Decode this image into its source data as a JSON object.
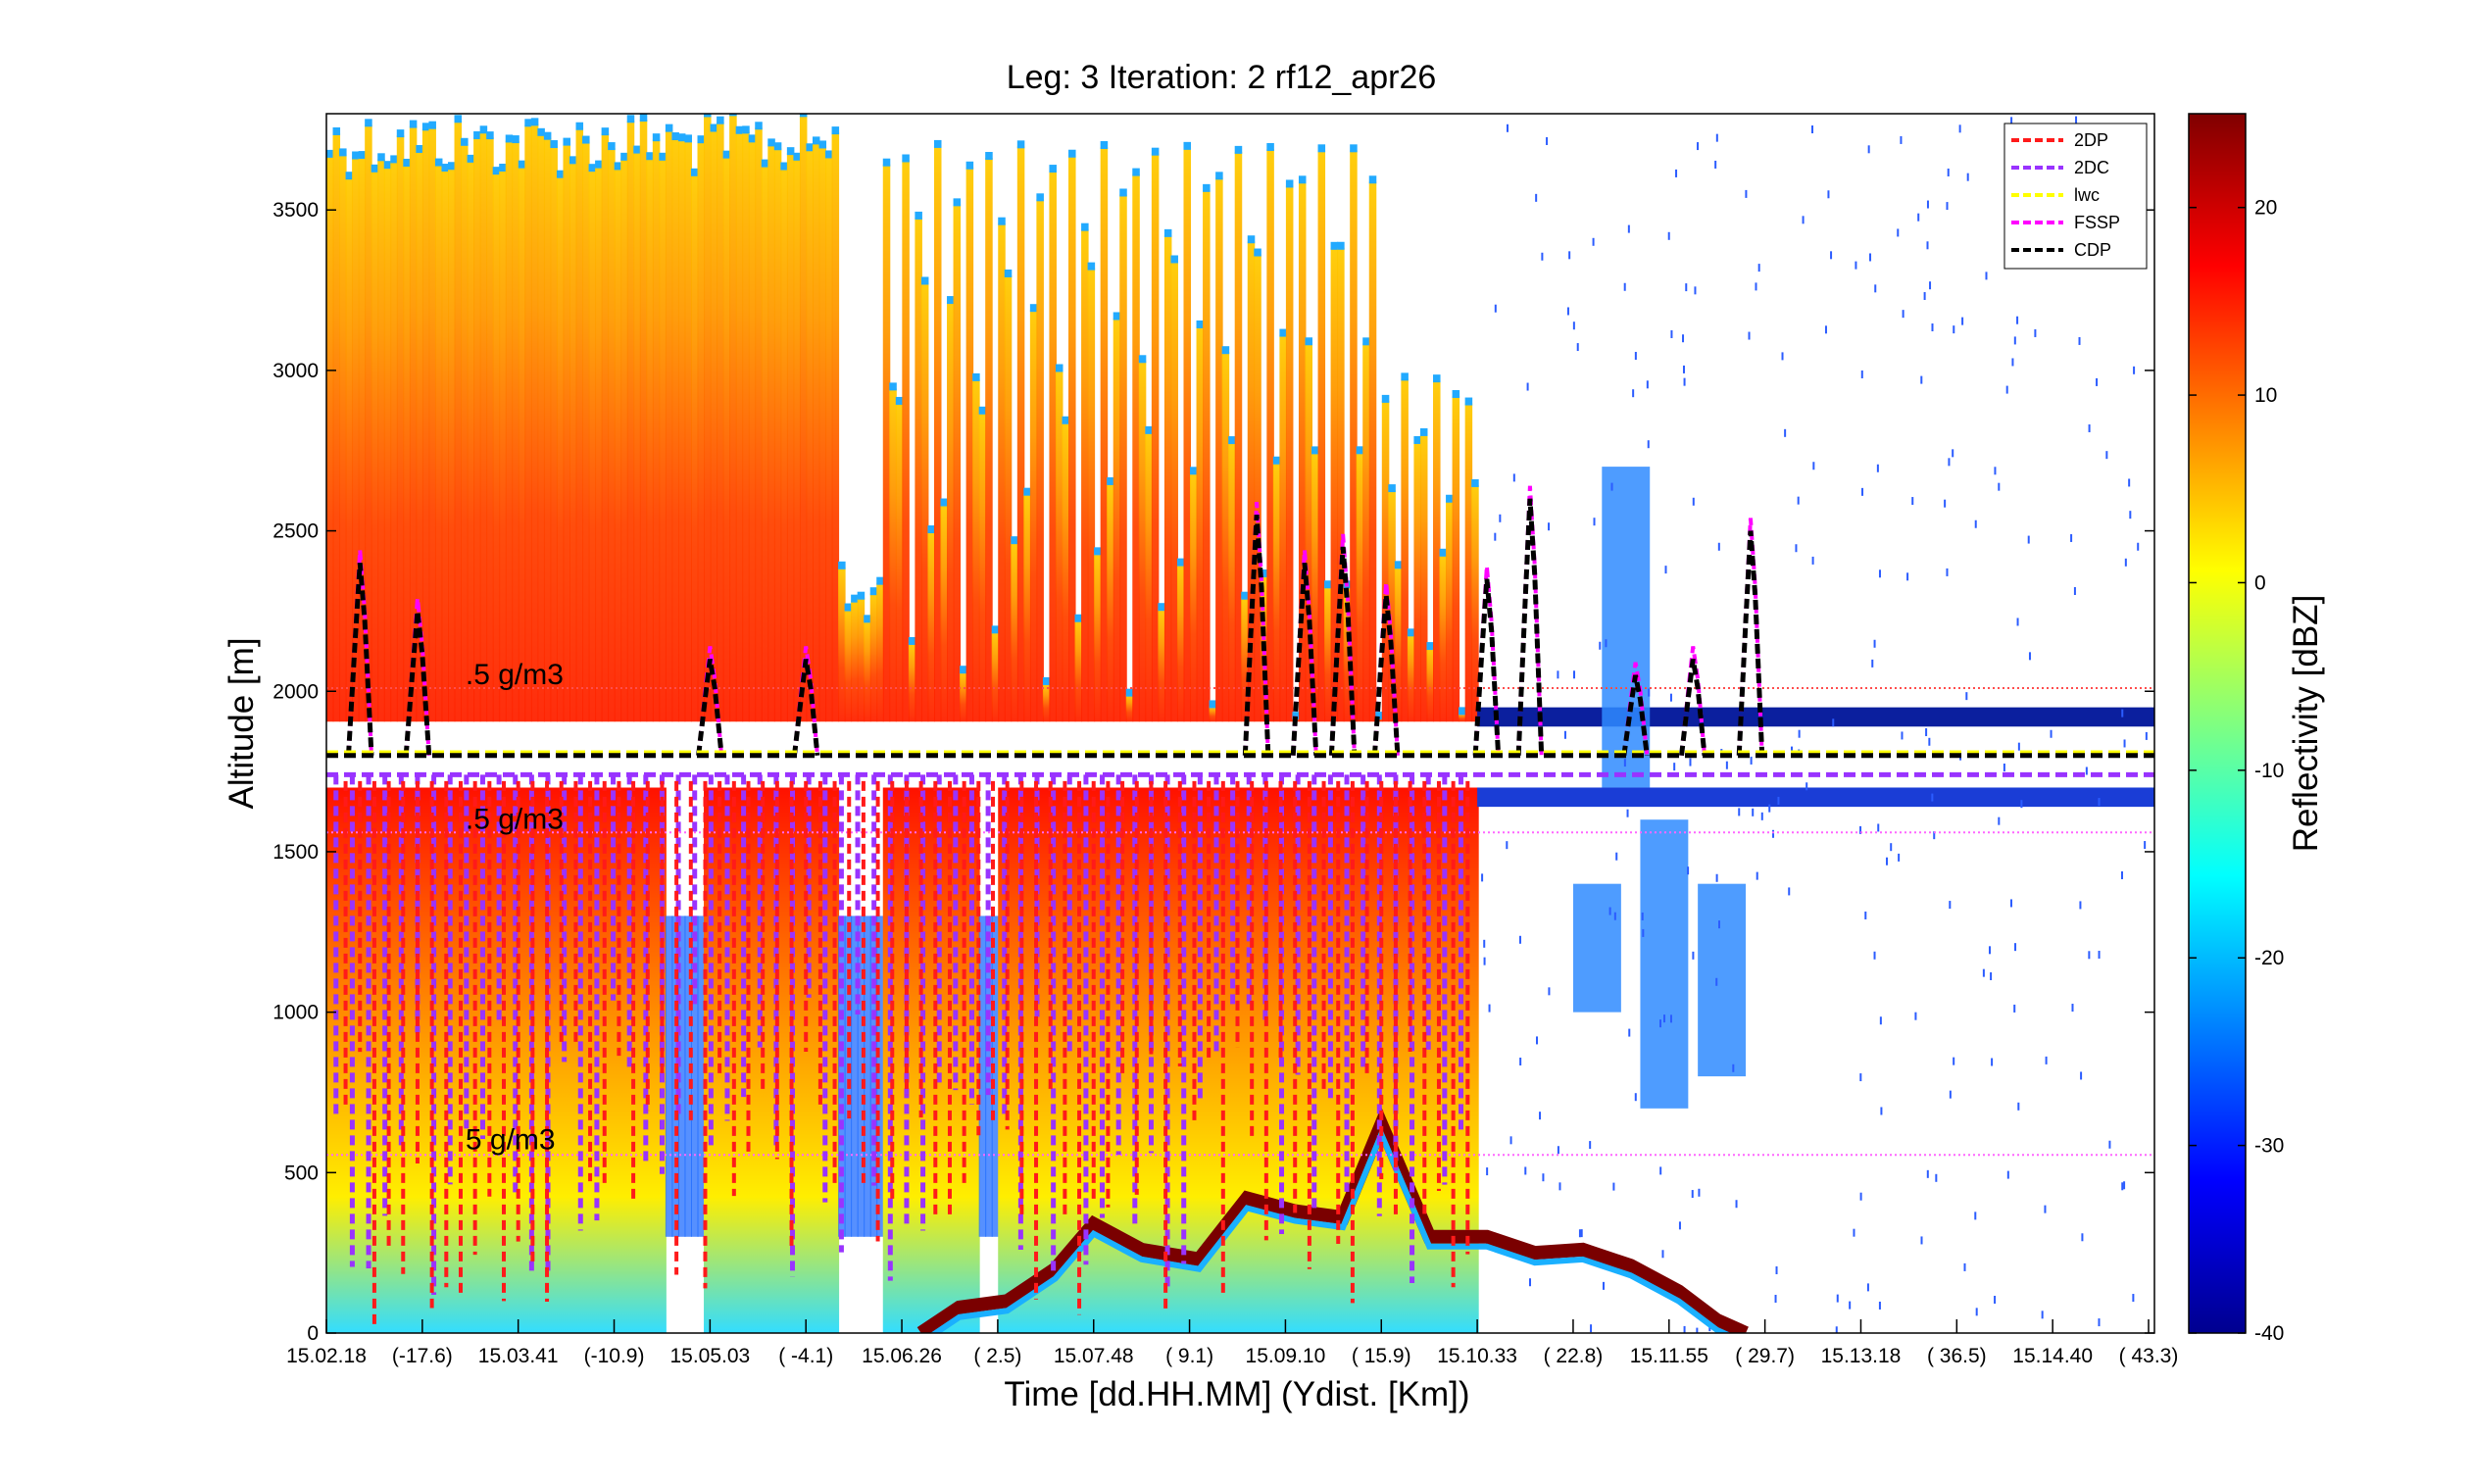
{
  "chart_data": {
    "type": "heatmap",
    "title": "Leg: 3  Iteration: 2  rf12_apr26",
    "xlabel": "Time [dd.HH.MM]     (Ydist. [Km])",
    "ylabel": "Altitude [m]",
    "colorbar_label": "Reflectivity [dBZ]",
    "ylim": [
      0,
      3800
    ],
    "clim": [
      -40,
      25
    ],
    "colormap": "jet",
    "flight_altitude": 1800,
    "y_ticks": [
      0,
      500,
      1000,
      1500,
      2000,
      2500,
      3000,
      3500
    ],
    "x_ticks": [
      {
        "label": "15.02.18",
        "x": 0
      },
      {
        "label": "(-17.6)",
        "x": 1
      },
      {
        "label": "15.03.41",
        "x": 2
      },
      {
        "label": "(-10.9)",
        "x": 3
      },
      {
        "label": "15.05.03",
        "x": 4
      },
      {
        "label": "( -4.1)",
        "x": 5
      },
      {
        "label": "15.06.26",
        "x": 6
      },
      {
        "label": "(  2.5)",
        "x": 7
      },
      {
        "label": "15.07.48",
        "x": 8
      },
      {
        "label": "(  9.1)",
        "x": 9
      },
      {
        "label": "15.09.10",
        "x": 10
      },
      {
        "label": "( 15.9)",
        "x": 11
      },
      {
        "label": "15.10.33",
        "x": 12
      },
      {
        "label": "( 22.8)",
        "x": 13
      },
      {
        "label": "15.11.55",
        "x": 14
      },
      {
        "label": "( 29.7)",
        "x": 15
      },
      {
        "label": "15.13.18",
        "x": 16
      },
      {
        "label": "( 36.5)",
        "x": 17
      },
      {
        "label": "15.14.40",
        "x": 18
      },
      {
        "label": "( 43.3)",
        "x": 19
      }
    ],
    "colorbar_ticks": [
      -40,
      -30,
      -20,
      -10,
      0,
      10,
      20
    ],
    "legend": {
      "position": "top-right",
      "entries": [
        {
          "name": "2DP",
          "color": "#ff1a1a"
        },
        {
          "name": "2DC",
          "color": "#9933ff"
        },
        {
          "name": "lwc",
          "color": "#ffff00"
        },
        {
          "name": "FSSP",
          "color": "#ff00ff"
        },
        {
          "name": "CDP",
          "color": "#000000"
        }
      ]
    },
    "annotations": [
      {
        "text": ".5 g/m3",
        "altitude": 2010,
        "x": 1.45
      },
      {
        "text": ".5 g/m3",
        "altitude": 1560,
        "x": 1.45
      },
      {
        "text": "5 g/m3",
        "altitude": 560,
        "x": 1.45
      }
    ],
    "reference_lines": [
      {
        "altitude": 2010,
        "color": "#ff4d4d"
      },
      {
        "altitude": 1560,
        "color": "#ff66ff"
      },
      {
        "altitude": 555,
        "color": "#ff66ff"
      }
    ],
    "cdp_spikes_x": [
      0.35,
      0.95,
      4.0,
      5.0,
      9.7,
      10.2,
      10.6,
      11.05,
      12.1,
      12.55,
      13.65,
      14.25,
      14.85
    ],
    "surface_altitude": [
      {
        "x": 6.2,
        "y": 0
      },
      {
        "x": 6.6,
        "y": 80
      },
      {
        "x": 7.1,
        "y": 100
      },
      {
        "x": 7.6,
        "y": 200
      },
      {
        "x": 8.0,
        "y": 340
      },
      {
        "x": 8.5,
        "y": 260
      },
      {
        "x": 9.1,
        "y": 230
      },
      {
        "x": 9.6,
        "y": 420
      },
      {
        "x": 10.1,
        "y": 380
      },
      {
        "x": 10.6,
        "y": 360
      },
      {
        "x": 11.0,
        "y": 650
      },
      {
        "x": 11.5,
        "y": 300
      },
      {
        "x": 12.1,
        "y": 300
      },
      {
        "x": 12.6,
        "y": 250
      },
      {
        "x": 13.1,
        "y": 260
      },
      {
        "x": 13.6,
        "y": 210
      },
      {
        "x": 14.1,
        "y": 130
      },
      {
        "x": 14.5,
        "y": 40
      },
      {
        "x": 14.8,
        "y": 0
      }
    ]
  }
}
